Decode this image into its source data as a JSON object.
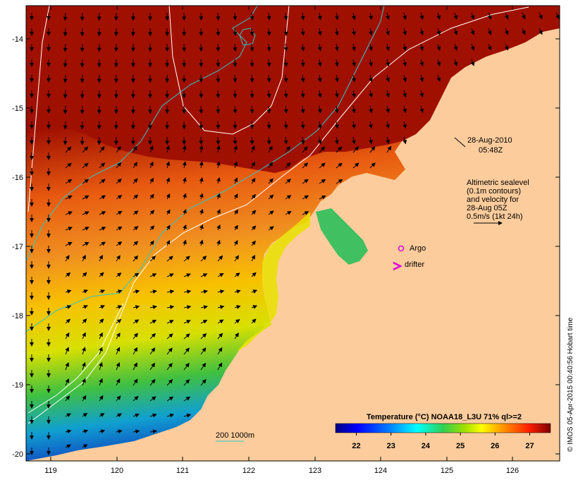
{
  "map": {
    "lon_ticks": [
      "119",
      "120",
      "121",
      "122",
      "123",
      "124",
      "125",
      "126"
    ],
    "lat_ticks": [
      "-14",
      "-15",
      "-16",
      "-17",
      "-18",
      "-19",
      "-20"
    ],
    "timestamp_line1": "28-Aug-2010",
    "timestamp_line2": "05:48Z",
    "altimetry_lines": [
      "Altimetric sealevel",
      "(0.1m contours)",
      "and velocity for",
      "28-Aug 05Z",
      "0.5m/s (1kt 24h)"
    ],
    "argo_label": "Argo",
    "drifter_label": "drifter",
    "depth_label": "200  1000m",
    "credit": "© IMOS 05-Apr-2015 00:40:56 Hobart time"
  },
  "colorbar": {
    "title": "Temperature (°C) NOAA18_L3U 71% ql>=2",
    "ticks": [
      "22",
      "23",
      "24",
      "25",
      "26",
      "27"
    ],
    "range": [
      21.4,
      27.6
    ],
    "colors": [
      "#00007f",
      "#0000ff",
      "#007fff",
      "#00ffff",
      "#7fff7f",
      "#00c040",
      "#ffff00",
      "#ff7f00",
      "#ff0000",
      "#7f0000"
    ]
  },
  "colors": {
    "land": "#fccc9c",
    "warm_sea": "#a01000",
    "contour_200": "#2fc8c8",
    "sealevel_contour": "#ffffff",
    "argo": "#e000e0",
    "drifter": "#e000e0"
  }
}
